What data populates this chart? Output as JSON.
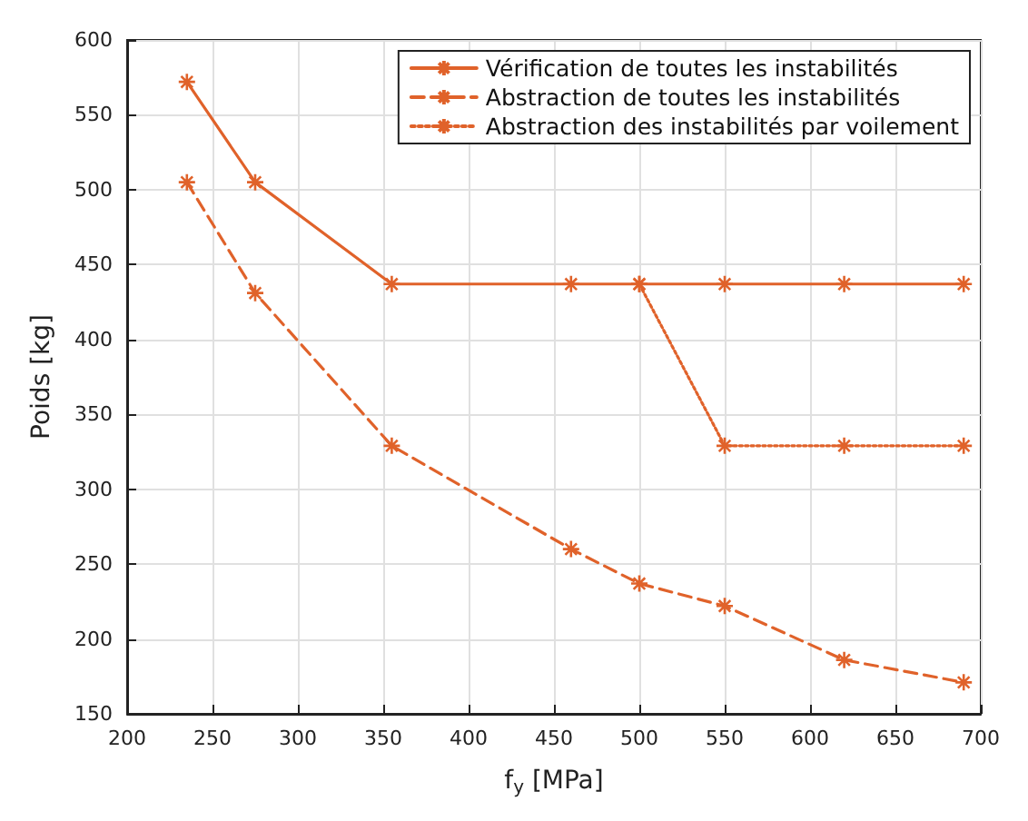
{
  "chart_data": {
    "type": "line",
    "xlabel": "f$_{y}$ [MPa]",
    "ylabel": "Poids [kg]",
    "series": [
      {
        "name": "Vérification de toutes les instabilités",
        "color": "#e0622a",
        "line_style": "solid",
        "x": [
          235,
          275,
          355,
          460,
          500,
          550,
          620,
          690
        ],
        "values": [
          572,
          505,
          437,
          437,
          437,
          437,
          437,
          437
        ]
      },
      {
        "name": "Abstraction de toutes les instabilités",
        "color": "#e0622a",
        "line_style": "dashed",
        "x": [
          235,
          275,
          355,
          460,
          500,
          550,
          620,
          690
        ],
        "values": [
          505,
          431,
          329,
          260,
          237,
          222,
          186,
          171
        ]
      },
      {
        "name": "Abstraction des instabilités par voilement",
        "color": "#e0622a",
        "line_style": "dotted",
        "x": [
          500,
          550,
          620,
          690
        ],
        "values": [
          437,
          329,
          329,
          329
        ]
      }
    ],
    "xlim": [
      200,
      700
    ],
    "xticks": [
      200,
      250,
      300,
      350,
      400,
      450,
      500,
      550,
      600,
      650,
      700
    ],
    "ylim": [
      150,
      600
    ],
    "yticks": [
      150,
      200,
      250,
      300,
      350,
      400,
      450,
      500,
      550,
      600
    ],
    "grid": true,
    "legend": "top right",
    "marker": "cross"
  }
}
